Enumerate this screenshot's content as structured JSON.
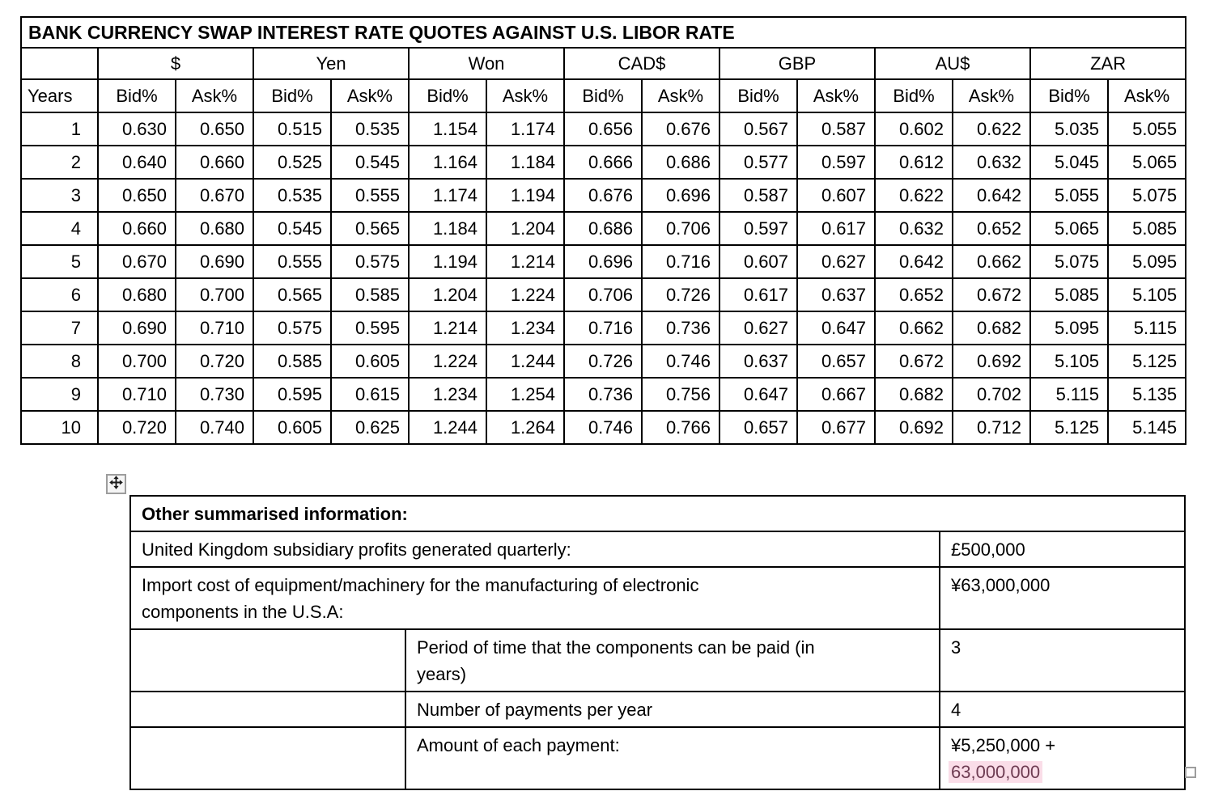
{
  "main_table": {
    "title": "BANK CURRENCY SWAP INTEREST RATE QUOTES AGAINST U.S. LIBOR RATE",
    "years_header": "Years",
    "bid_label": "Bid%",
    "ask_label": "Ask%",
    "currencies": [
      "$",
      "Yen",
      "Won",
      "CAD$",
      "GBP",
      "AU$",
      "ZAR"
    ],
    "rows": [
      {
        "year": "1",
        "values": [
          "0.630",
          "0.650",
          "0.515",
          "0.535",
          "1.154",
          "1.174",
          "0.656",
          "0.676",
          "0.567",
          "0.587",
          "0.602",
          "0.622",
          "5.035",
          "5.055"
        ]
      },
      {
        "year": "2",
        "values": [
          "0.640",
          "0.660",
          "0.525",
          "0.545",
          "1.164",
          "1.184",
          "0.666",
          "0.686",
          "0.577",
          "0.597",
          "0.612",
          "0.632",
          "5.045",
          "5.065"
        ]
      },
      {
        "year": "3",
        "values": [
          "0.650",
          "0.670",
          "0.535",
          "0.555",
          "1.174",
          "1.194",
          "0.676",
          "0.696",
          "0.587",
          "0.607",
          "0.622",
          "0.642",
          "5.055",
          "5.075"
        ]
      },
      {
        "year": "4",
        "values": [
          "0.660",
          "0.680",
          "0.545",
          "0.565",
          "1.184",
          "1.204",
          "0.686",
          "0.706",
          "0.597",
          "0.617",
          "0.632",
          "0.652",
          "5.065",
          "5.085"
        ]
      },
      {
        "year": "5",
        "values": [
          "0.670",
          "0.690",
          "0.555",
          "0.575",
          "1.194",
          "1.214",
          "0.696",
          "0.716",
          "0.607",
          "0.627",
          "0.642",
          "0.662",
          "5.075",
          "5.095"
        ]
      },
      {
        "year": "6",
        "values": [
          "0.680",
          "0.700",
          "0.565",
          "0.585",
          "1.204",
          "1.224",
          "0.706",
          "0.726",
          "0.617",
          "0.637",
          "0.652",
          "0.672",
          "5.085",
          "5.105"
        ]
      },
      {
        "year": "7",
        "values": [
          "0.690",
          "0.710",
          "0.575",
          "0.595",
          "1.214",
          "1.234",
          "0.716",
          "0.736",
          "0.627",
          "0.647",
          "0.662",
          "0.682",
          "5.095",
          "5.115"
        ]
      },
      {
        "year": "8",
        "values": [
          "0.700",
          "0.720",
          "0.585",
          "0.605",
          "1.224",
          "1.244",
          "0.726",
          "0.746",
          "0.637",
          "0.657",
          "0.672",
          "0.692",
          "5.105",
          "5.125"
        ]
      },
      {
        "year": "9",
        "values": [
          "0.710",
          "0.730",
          "0.595",
          "0.615",
          "1.234",
          "1.254",
          "0.736",
          "0.756",
          "0.647",
          "0.667",
          "0.682",
          "0.702",
          "5.115",
          "5.135"
        ]
      },
      {
        "year": "10",
        "values": [
          "0.720",
          "0.740",
          "0.605",
          "0.625",
          "1.244",
          "1.264",
          "0.746",
          "0.766",
          "0.657",
          "0.677",
          "0.692",
          "0.712",
          "5.125",
          "5.145"
        ]
      }
    ]
  },
  "info_table": {
    "header": "Other summarised information:",
    "wide_rows": [
      {
        "label": "United Kingdom  subsidiary profits generated quarterly:",
        "value": "£500,000"
      },
      {
        "label": "Import cost of equipment/machinery for the manufacturing of electronic\ncomponents in the U.S.A:",
        "value": "¥63,000,000"
      }
    ],
    "indent_rows": [
      {
        "label": "Period of time that the components can be paid (in\nyears)",
        "value": "3"
      },
      {
        "label": "Number of payments per year",
        "value": "4"
      },
      {
        "label": "Amount of each payment:",
        "value": "¥5,250,000 +",
        "value_highlighted": "63,000,000"
      }
    ],
    "highlight_bg": "#fadde8",
    "highlight_text_color": "#6e3c52"
  },
  "icons": {
    "move_handle": "move-icon",
    "resize_handle": "table-resize-handle"
  }
}
